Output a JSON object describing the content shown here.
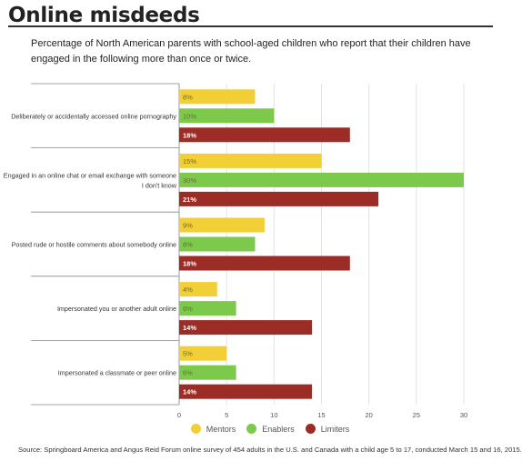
{
  "header": {
    "title": "Online misdeeds",
    "subtitle": "Percentage of North American parents with school-aged children who report that their children have engaged in the following more than once or twice."
  },
  "chart_data": {
    "type": "bar",
    "orientation": "horizontal",
    "categories": [
      [
        "Deliberately or accidentally accessed online pornography"
      ],
      [
        "Engaged in an online chat or email exchange with someone",
        "I don't know"
      ],
      [
        "Posted rude or hostile comments about somebody online"
      ],
      [
        "Impersonated you or another adult online"
      ],
      [
        "Impersonated a classmate or peer online"
      ]
    ],
    "series": [
      {
        "name": "Mentors",
        "color": "#f2cf36",
        "values": [
          8,
          15,
          9,
          4,
          5
        ],
        "labels": [
          "8%",
          "15%",
          "9%",
          "4%",
          "5%"
        ]
      },
      {
        "name": "Enablers",
        "color": "#7dc94b",
        "values": [
          10,
          30,
          8,
          6,
          6
        ],
        "labels": [
          "10%",
          "30%",
          "8%",
          "6%",
          "6%"
        ]
      },
      {
        "name": "Limiters",
        "color": "#9b2d26",
        "values": [
          18,
          21,
          18,
          14,
          14
        ],
        "labels": [
          "18%",
          "21%",
          "18%",
          "14%",
          "14%"
        ]
      }
    ],
    "xlim": [
      0,
      30
    ],
    "xticks": [
      0,
      5,
      10,
      15,
      20,
      25,
      30
    ],
    "xlabel": "",
    "ylabel": "",
    "grid": true,
    "legend_position": "bottom"
  },
  "source": "Source: Springboard America and Angus Reid Forum online survey of 454 adults in the U.S. and Canada with a child age 5 to 17, conducted March 15 and 16, 2015."
}
